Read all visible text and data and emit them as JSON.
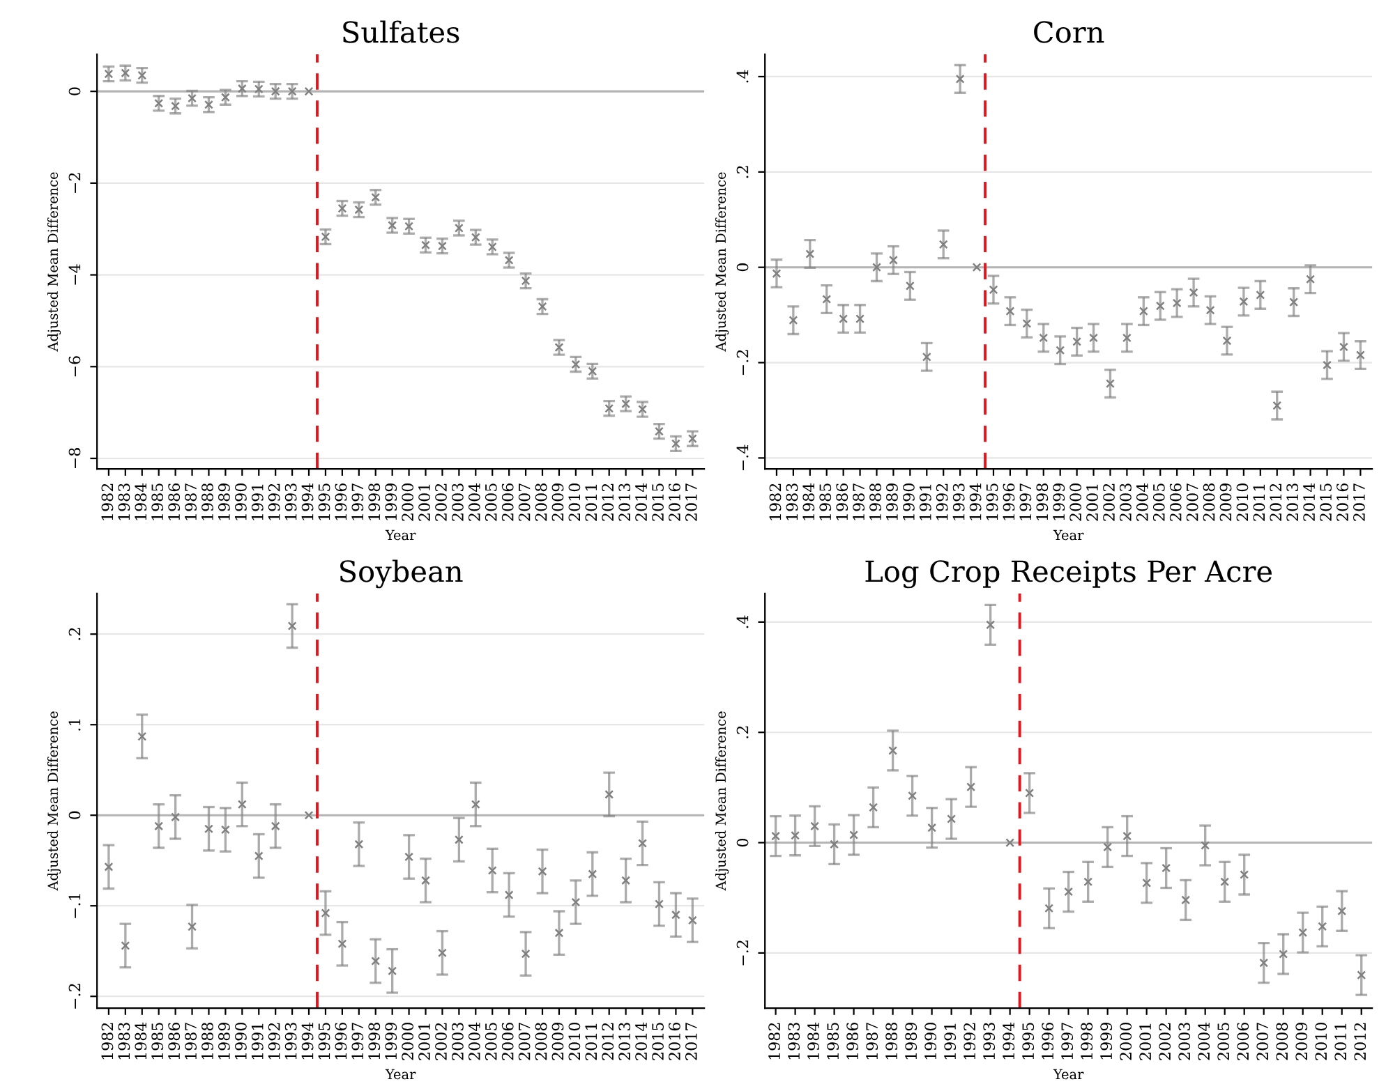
{
  "chart_data": [
    {
      "type": "scatter",
      "title": "Sulfates",
      "xlabel": "Year",
      "ylabel": "Adjusted Mean Difference",
      "marker": "cross",
      "grid": "y",
      "color": "#808080",
      "x": [
        1982,
        1983,
        1984,
        1985,
        1986,
        1987,
        1988,
        1989,
        1990,
        1991,
        1992,
        1993,
        1994,
        1995,
        1996,
        1997,
        1998,
        1999,
        2000,
        2001,
        2002,
        2003,
        2004,
        2005,
        2006,
        2007,
        2008,
        2009,
        2010,
        2011,
        2012,
        2013,
        2014,
        2015,
        2016,
        2017
      ],
      "xticks": [
        1982,
        1983,
        1984,
        1985,
        1986,
        1987,
        1988,
        1989,
        1990,
        1991,
        1992,
        1993,
        1994,
        1995,
        1996,
        1997,
        1998,
        1999,
        2000,
        2001,
        2002,
        2003,
        2004,
        2005,
        2006,
        2007,
        2008,
        2009,
        2010,
        2011,
        2012,
        2013,
        2014,
        2015,
        2016,
        2017
      ],
      "xlim": [
        1981.3,
        2017.7
      ],
      "ylim": [
        -8.23,
        0.81
      ],
      "yticks": [
        {
          "value": -8,
          "label": "−8"
        },
        {
          "value": -6,
          "label": "−6"
        },
        {
          "value": -4,
          "label": "−4"
        },
        {
          "value": -2,
          "label": "−2"
        },
        0
      ],
      "values": [
        0.38,
        0.4,
        0.35,
        -0.26,
        -0.32,
        -0.15,
        -0.29,
        -0.13,
        0.06,
        0.05,
        0,
        0,
        0,
        -3.17,
        -2.55,
        -2.58,
        -2.31,
        -2.92,
        -2.94,
        -3.35,
        -3.37,
        -2.98,
        -3.18,
        -3.39,
        -3.68,
        -4.13,
        -4.69,
        -5.58,
        -5.95,
        -6.1,
        -6.91,
        -6.81,
        -6.93,
        -7.41,
        -7.68,
        -7.57
      ],
      "errors": [
        0.16,
        0.16,
        0.16,
        0.16,
        0.16,
        0.16,
        0.16,
        0.16,
        0.16,
        0.16,
        0.16,
        0.16,
        null,
        0.16,
        0.16,
        0.16,
        0.16,
        0.16,
        0.16,
        0.16,
        0.16,
        0.16,
        0.16,
        0.16,
        0.16,
        0.16,
        0.16,
        0.16,
        0.16,
        0.16,
        0.16,
        0.16,
        0.16,
        0.16,
        0.16,
        0.16
      ],
      "ref_lines": [
        {
          "axis": "y",
          "value": 0,
          "color": "#b4b4b4",
          "line_style": "solid"
        },
        {
          "axis": "x",
          "value": 1994.5,
          "color": "#e8141c",
          "line_style": "dashed"
        }
      ]
    },
    {
      "type": "scatter",
      "title": "Corn",
      "xlabel": "Year",
      "ylabel": "Adjusted Mean Difference",
      "marker": "cross",
      "grid": "y",
      "color": "#808080",
      "x": [
        1982,
        1983,
        1984,
        1985,
        1986,
        1987,
        1988,
        1989,
        1990,
        1991,
        1992,
        1993,
        1994,
        1995,
        1996,
        1997,
        1998,
        1999,
        2000,
        2001,
        2002,
        2003,
        2004,
        2005,
        2006,
        2007,
        2008,
        2009,
        2010,
        2011,
        2012,
        2013,
        2014,
        2015,
        2016,
        2017
      ],
      "xticks": [
        1982,
        1983,
        1984,
        1985,
        1986,
        1987,
        1988,
        1989,
        1990,
        1991,
        1992,
        1993,
        1994,
        1995,
        1996,
        1997,
        1998,
        1999,
        2000,
        2001,
        2002,
        2003,
        2004,
        2005,
        2006,
        2007,
        2008,
        2009,
        2010,
        2011,
        2012,
        2013,
        2014,
        2015,
        2016,
        2017
      ],
      "xlim": [
        1981.3,
        2017.7
      ],
      "ylim": [
        -0.423,
        0.447
      ],
      "yticks": [
        {
          "value": -0.4,
          "label": "−.4"
        },
        {
          "value": -0.2,
          "label": "−.2"
        },
        0,
        {
          "value": 0.2,
          "label": ".2"
        },
        {
          "value": 0.4,
          "label": ".4"
        }
      ],
      "values": [
        -0.013,
        -0.111,
        0.028,
        -0.067,
        -0.108,
        -0.108,
        0,
        0.015,
        -0.039,
        -0.188,
        0.048,
        0.395,
        0,
        -0.047,
        -0.092,
        -0.118,
        -0.148,
        -0.174,
        -0.156,
        -0.148,
        -0.244,
        -0.148,
        -0.092,
        -0.081,
        -0.075,
        -0.053,
        -0.09,
        -0.154,
        -0.072,
        -0.058,
        -0.29,
        -0.073,
        -0.025,
        -0.205,
        -0.167,
        -0.184
      ],
      "errors": [
        0.029,
        0.029,
        0.029,
        0.029,
        0.029,
        0.029,
        0.029,
        0.029,
        0.029,
        0.029,
        0.029,
        0.029,
        null,
        0.029,
        0.029,
        0.029,
        0.029,
        0.029,
        0.029,
        0.029,
        0.029,
        0.029,
        0.029,
        0.029,
        0.029,
        0.029,
        0.029,
        0.029,
        0.029,
        0.029,
        0.029,
        0.029,
        0.029,
        0.029,
        0.029,
        0.029
      ],
      "ref_lines": [
        {
          "axis": "y",
          "value": 0,
          "color": "#b4b4b4",
          "line_style": "solid"
        },
        {
          "axis": "x",
          "value": 1994.5,
          "color": "#e8141c",
          "line_style": "dashed"
        }
      ]
    },
    {
      "type": "scatter",
      "title": "Soybean",
      "xlabel": "Year",
      "ylabel": "Adjusted Mean Difference",
      "marker": "cross",
      "grid": "y",
      "color": "#808080",
      "x": [
        1982,
        1983,
        1984,
        1985,
        1986,
        1987,
        1988,
        1989,
        1990,
        1991,
        1992,
        1993,
        1994,
        1995,
        1996,
        1997,
        1998,
        1999,
        2000,
        2001,
        2002,
        2003,
        2004,
        2005,
        2006,
        2007,
        2008,
        2009,
        2010,
        2011,
        2012,
        2013,
        2014,
        2015,
        2016,
        2017
      ],
      "xticks": [
        1982,
        1983,
        1984,
        1985,
        1986,
        1987,
        1988,
        1989,
        1990,
        1991,
        1992,
        1993,
        1994,
        1995,
        1996,
        1997,
        1998,
        1999,
        2000,
        2001,
        2002,
        2003,
        2004,
        2005,
        2006,
        2007,
        2008,
        2009,
        2010,
        2011,
        2012,
        2013,
        2014,
        2015,
        2016,
        2017
      ],
      "xlim": [
        1981.3,
        2017.7
      ],
      "ylim": [
        -0.213,
        0.245
      ],
      "yticks": [
        {
          "value": -0.2,
          "label": "−.2"
        },
        {
          "value": -0.1,
          "label": "−.1"
        },
        0,
        {
          "value": 0.1,
          "label": ".1"
        },
        {
          "value": 0.2,
          "label": ".2"
        }
      ],
      "values": [
        -0.057,
        -0.144,
        0.087,
        -0.012,
        -0.002,
        -0.123,
        -0.015,
        -0.016,
        0.012,
        -0.045,
        -0.012,
        0.209,
        0,
        -0.108,
        -0.142,
        -0.032,
        -0.161,
        -0.172,
        -0.046,
        -0.072,
        -0.152,
        -0.027,
        0.012,
        -0.061,
        -0.088,
        -0.153,
        -0.062,
        -0.13,
        -0.096,
        -0.065,
        0.023,
        -0.072,
        -0.031,
        -0.098,
        -0.11,
        -0.116
      ],
      "errors": [
        0.024,
        0.024,
        0.024,
        0.024,
        0.024,
        0.024,
        0.024,
        0.024,
        0.024,
        0.024,
        0.024,
        0.024,
        null,
        0.024,
        0.024,
        0.024,
        0.024,
        0.024,
        0.024,
        0.024,
        0.024,
        0.024,
        0.024,
        0.024,
        0.024,
        0.024,
        0.024,
        0.024,
        0.024,
        0.024,
        0.024,
        0.024,
        0.024,
        0.024,
        0.024,
        0.024
      ],
      "ref_lines": [
        {
          "axis": "y",
          "value": 0,
          "color": "#b4b4b4",
          "line_style": "solid"
        },
        {
          "axis": "x",
          "value": 1994.5,
          "color": "#e8141c",
          "line_style": "dashed"
        }
      ]
    },
    {
      "type": "scatter",
      "title": "Log Crop Receipts Per Acre",
      "xlabel": "Year",
      "ylabel": "Adjusted Mean Difference",
      "marker": "cross",
      "grid": "y",
      "color": "#808080",
      "x": [
        1982,
        1983,
        1984,
        1985,
        1986,
        1987,
        1988,
        1989,
        1990,
        1991,
        1992,
        1993,
        1994,
        1995,
        1996,
        1997,
        1998,
        1999,
        2000,
        2001,
        2002,
        2003,
        2004,
        2005,
        2006,
        2007,
        2008,
        2009,
        2010,
        2011,
        2012
      ],
      "xticks": [
        1982,
        1983,
        1984,
        1985,
        1986,
        1987,
        1988,
        1989,
        1990,
        1991,
        1992,
        1993,
        1994,
        1995,
        1996,
        1997,
        1998,
        1999,
        2000,
        2001,
        2002,
        2003,
        2004,
        2005,
        2006,
        2007,
        2008,
        2009,
        2010,
        2011,
        2012
      ],
      "xlim": [
        1981.45,
        2012.55
      ],
      "ylim": [
        -0.3,
        0.452
      ],
      "yticks": [
        {
          "value": -0.2,
          "label": "−.2"
        },
        0,
        {
          "value": 0.2,
          "label": ".2"
        },
        {
          "value": 0.4,
          "label": ".4"
        }
      ],
      "values": [
        0.012,
        0.013,
        0.03,
        -0.003,
        0.014,
        0.064,
        0.167,
        0.085,
        0.027,
        0.043,
        0.101,
        0.395,
        0,
        0.09,
        -0.119,
        -0.089,
        -0.071,
        -0.008,
        0.012,
        -0.073,
        -0.046,
        -0.104,
        -0.005,
        -0.071,
        -0.058,
        -0.218,
        -0.202,
        -0.163,
        -0.152,
        -0.124,
        -0.24
      ],
      "errors": [
        0.036,
        0.036,
        0.036,
        0.036,
        0.036,
        0.036,
        0.036,
        0.036,
        0.036,
        0.036,
        0.036,
        0.036,
        null,
        0.036,
        0.036,
        0.036,
        0.036,
        0.036,
        0.036,
        0.036,
        0.036,
        0.036,
        0.036,
        0.036,
        0.036,
        0.036,
        0.036,
        0.036,
        0.036,
        0.036,
        0.036
      ],
      "ref_lines": [
        {
          "axis": "y",
          "value": 0,
          "color": "#b4b4b4",
          "line_style": "solid"
        },
        {
          "axis": "x",
          "value": 1994.5,
          "color": "#e8141c",
          "line_style": "dashed"
        }
      ]
    }
  ]
}
